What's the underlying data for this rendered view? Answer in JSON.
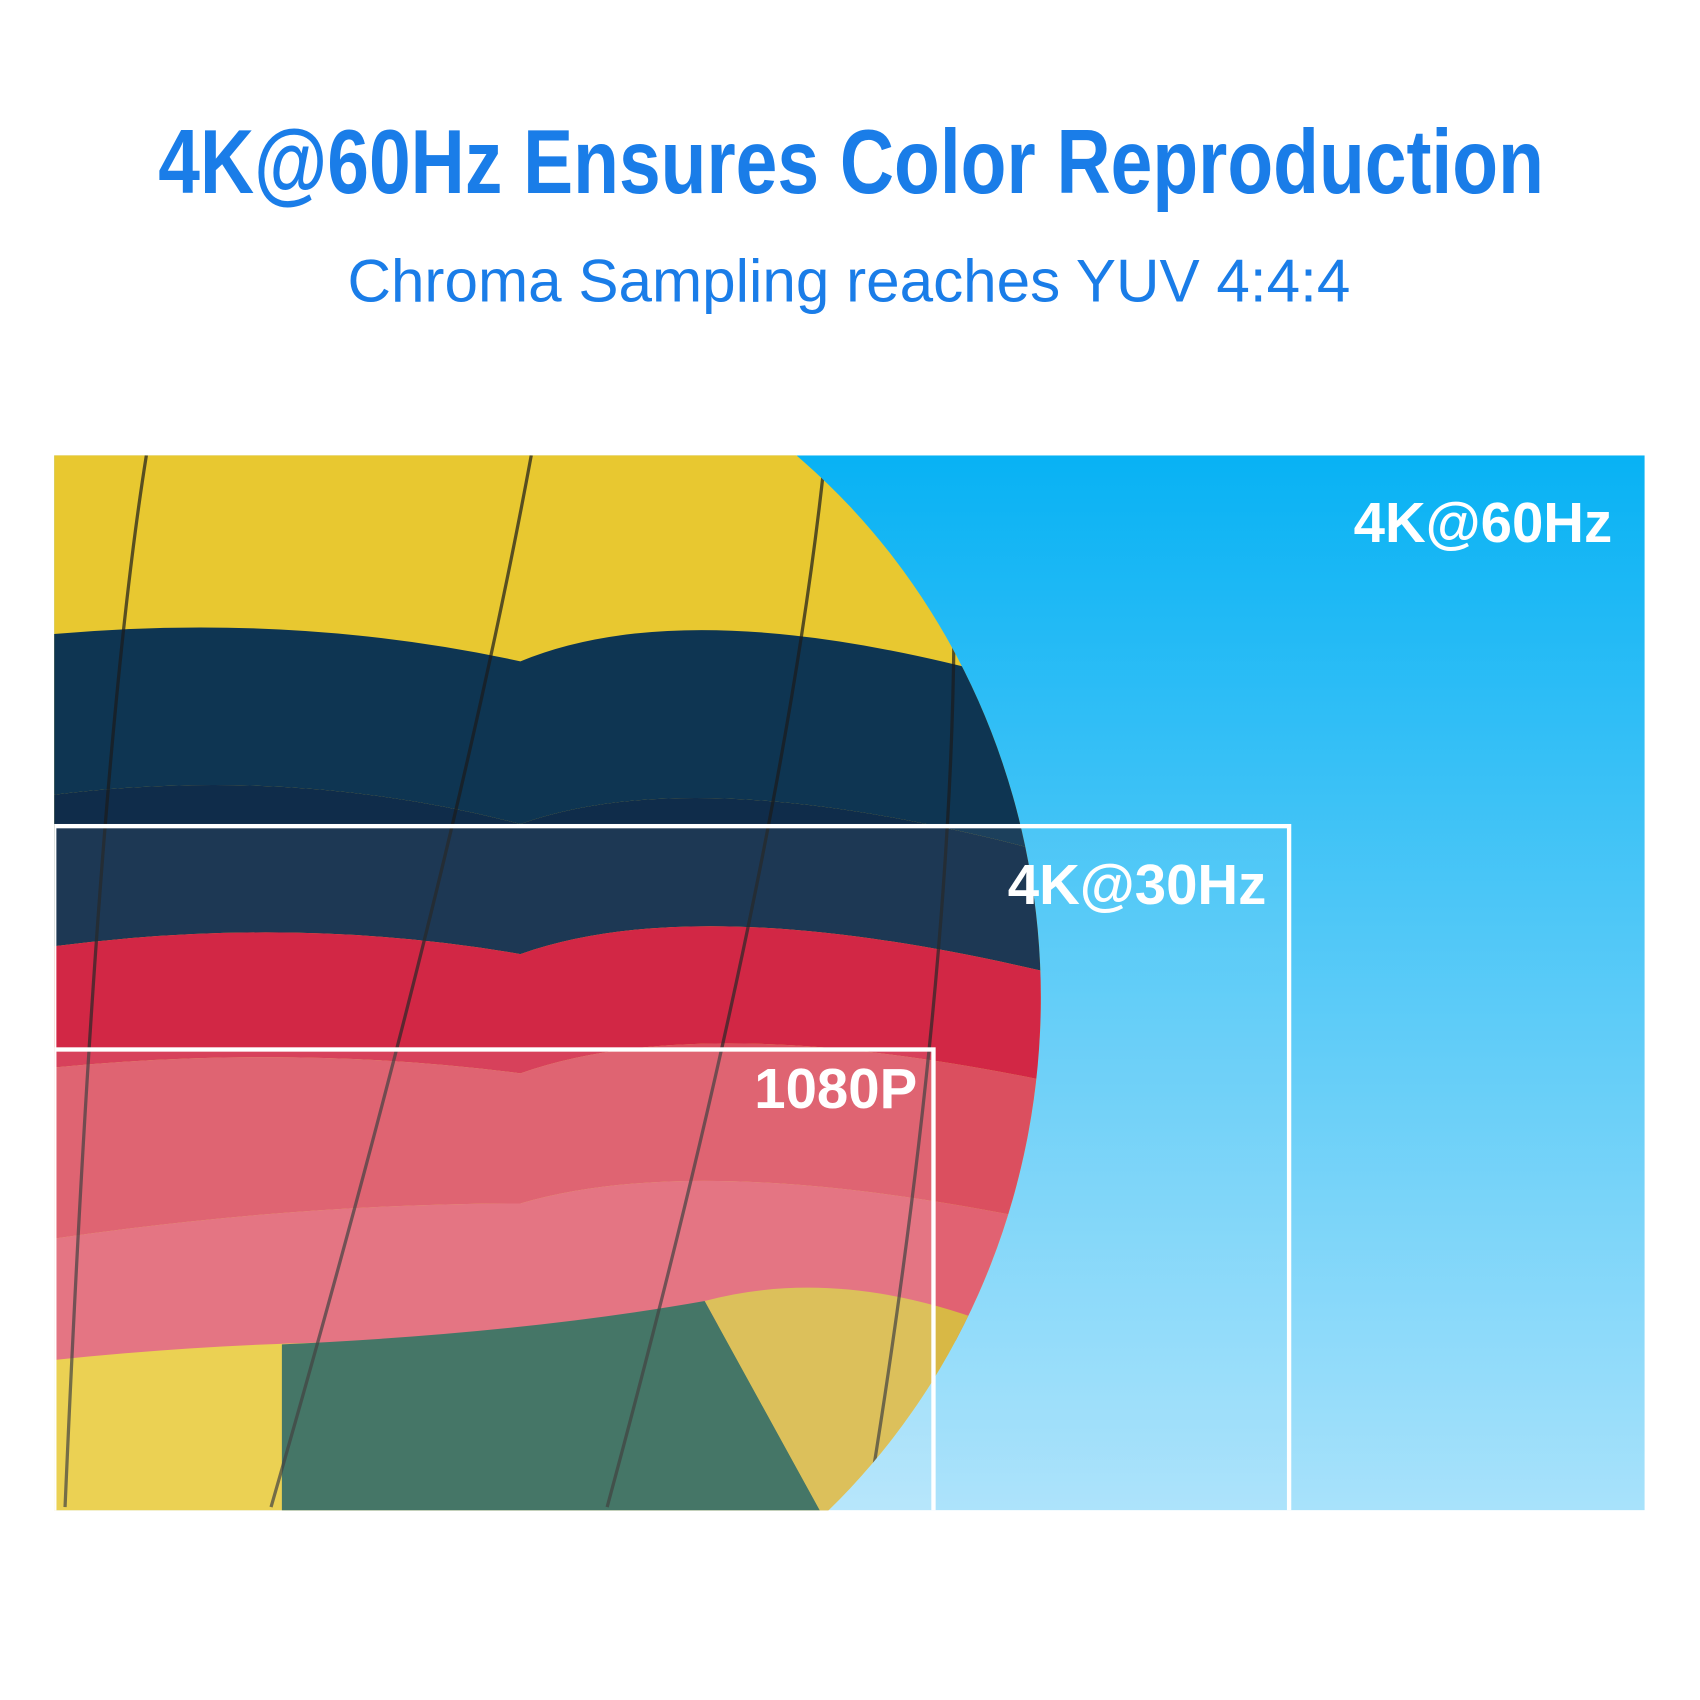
{
  "header": {
    "title": "4K@60Hz Ensures Color Reproduction",
    "subtitle": "Chroma Sampling reaches YUV 4:4:4"
  },
  "labels": [
    "4K@60Hz",
    "4K@30Hz",
    "1080P"
  ]
}
